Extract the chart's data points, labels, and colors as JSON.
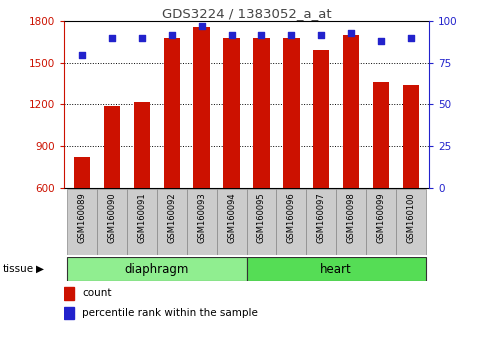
{
  "title": "GDS3224 / 1383052_a_at",
  "samples": [
    "GSM160089",
    "GSM160090",
    "GSM160091",
    "GSM160092",
    "GSM160093",
    "GSM160094",
    "GSM160095",
    "GSM160096",
    "GSM160097",
    "GSM160098",
    "GSM160099",
    "GSM160100"
  ],
  "counts": [
    820,
    1190,
    1215,
    1680,
    1760,
    1680,
    1680,
    1680,
    1590,
    1700,
    1360,
    1340
  ],
  "percentiles": [
    80,
    90,
    90,
    92,
    97,
    92,
    92,
    92,
    92,
    93,
    88,
    90
  ],
  "groups": [
    {
      "label": "diaphragm",
      "start": 0,
      "end": 6,
      "color": "#90EE90"
    },
    {
      "label": "heart",
      "start": 6,
      "end": 12,
      "color": "#55DD55"
    }
  ],
  "ylim_left": [
    600,
    1800
  ],
  "ylim_right": [
    0,
    100
  ],
  "yticks_left": [
    600,
    900,
    1200,
    1500,
    1800
  ],
  "yticks_right": [
    0,
    25,
    50,
    75,
    100
  ],
  "bar_color": "#CC1100",
  "dot_color": "#2222CC",
  "title_color": "#444444",
  "left_axis_color": "#CC1100",
  "right_axis_color": "#2222CC",
  "grid_color": "#000000",
  "bg_color": "#FFFFFF",
  "tick_label_bg": "#CCCCCC"
}
